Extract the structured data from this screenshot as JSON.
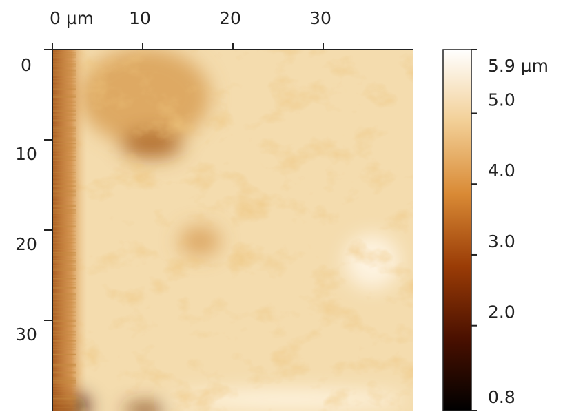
{
  "chart_data": {
    "type": "image",
    "xlim": [
      0,
      40
    ],
    "xticks": [
      {
        "value": 0,
        "label": "0 µm"
      },
      10,
      20,
      30
    ],
    "ylim": [
      0,
      40
    ],
    "yticks": [
      0,
      10,
      20,
      30
    ],
    "colorbar": {
      "clim": [
        0.8,
        5.9
      ],
      "ticks": [
        {
          "value": 5.9,
          "label": "5.9 µm"
        },
        {
          "value": 5,
          "label": "5.0"
        },
        {
          "value": 4,
          "label": "4.0"
        },
        {
          "value": 3,
          "label": "3.0"
        },
        {
          "value": 2,
          "label": "2.0"
        },
        0.8
      ],
      "colormap": [
        "#000000",
        "#4a1000",
        "#9a3c06",
        "#d98a35",
        "#f2cf96",
        "#ffffff"
      ]
    }
  }
}
